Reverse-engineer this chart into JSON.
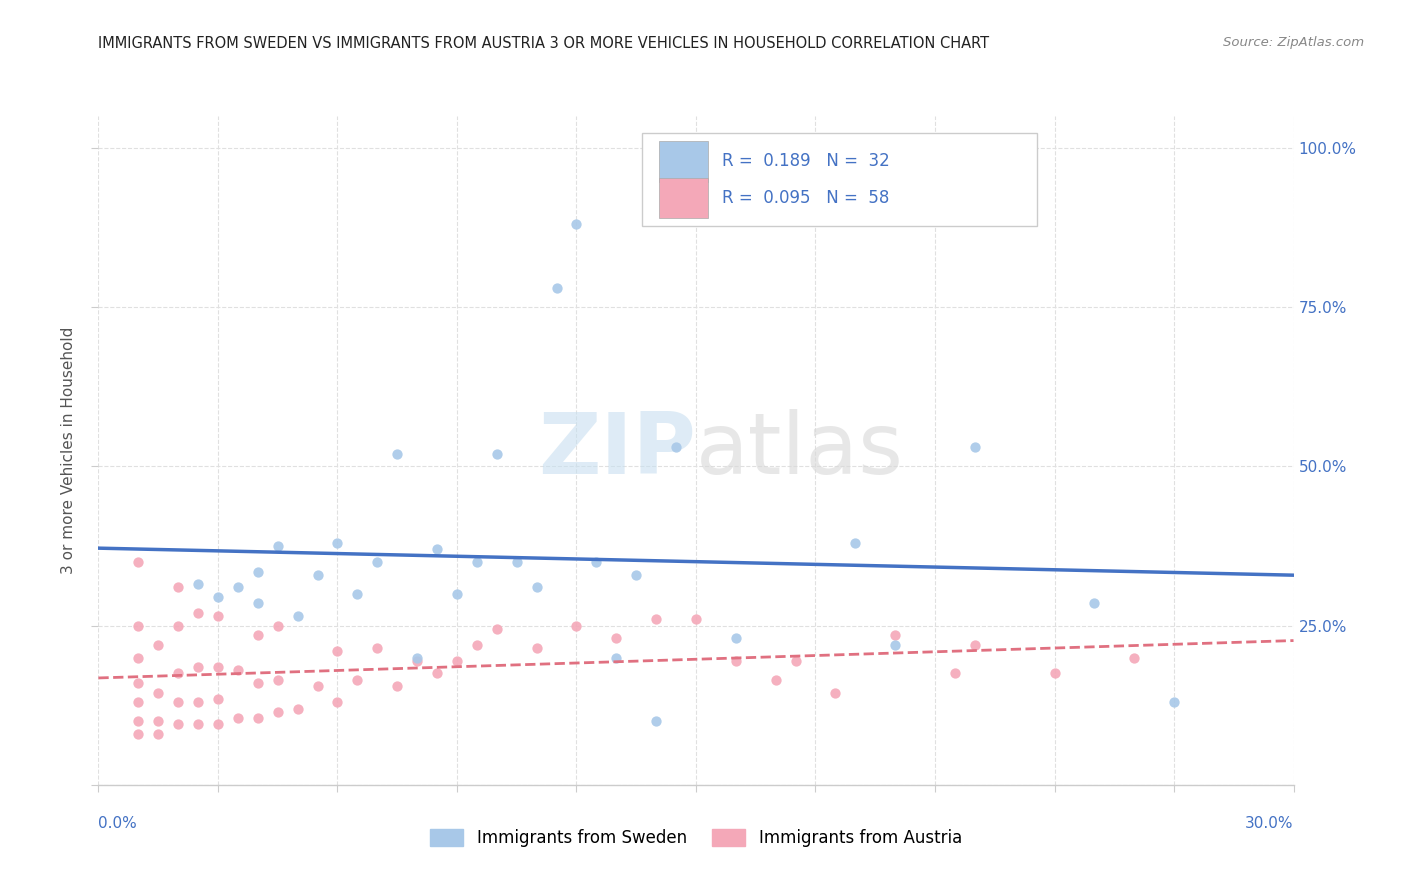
{
  "title": "IMMIGRANTS FROM SWEDEN VS IMMIGRANTS FROM AUSTRIA 3 OR MORE VEHICLES IN HOUSEHOLD CORRELATION CHART",
  "source": "Source: ZipAtlas.com",
  "ylabel_label": "3 or more Vehicles in Household",
  "bg_color": "#ffffff",
  "grid_color": "#e0e0e0",
  "sweden_scatter_color": "#a8c8e8",
  "austria_scatter_color": "#f4a8b8",
  "sweden_line_color": "#4472c4",
  "austria_line_color": "#e07080",
  "label_color": "#4472c4",
  "xmin": 0.0,
  "xmax": 0.3,
  "ymin": 0.0,
  "ymax": 1.05,
  "sweden_points_x": [
    0.025,
    0.03,
    0.035,
    0.04,
    0.04,
    0.045,
    0.05,
    0.055,
    0.06,
    0.065,
    0.07,
    0.075,
    0.08,
    0.085,
    0.09,
    0.095,
    0.1,
    0.105,
    0.11,
    0.115,
    0.12,
    0.125,
    0.13,
    0.135,
    0.14,
    0.145,
    0.16,
    0.19,
    0.2,
    0.22,
    0.25,
    0.27
  ],
  "sweden_points_y": [
    0.315,
    0.295,
    0.31,
    0.335,
    0.285,
    0.375,
    0.265,
    0.33,
    0.38,
    0.3,
    0.35,
    0.52,
    0.2,
    0.37,
    0.3,
    0.35,
    0.52,
    0.35,
    0.31,
    0.78,
    0.88,
    0.35,
    0.2,
    0.33,
    0.1,
    0.53,
    0.23,
    0.38,
    0.22,
    0.53,
    0.285,
    0.13
  ],
  "austria_points_x": [
    0.01,
    0.01,
    0.01,
    0.01,
    0.01,
    0.01,
    0.01,
    0.015,
    0.015,
    0.015,
    0.015,
    0.02,
    0.02,
    0.02,
    0.02,
    0.02,
    0.025,
    0.025,
    0.025,
    0.025,
    0.03,
    0.03,
    0.03,
    0.03,
    0.035,
    0.035,
    0.04,
    0.04,
    0.04,
    0.045,
    0.045,
    0.045,
    0.05,
    0.055,
    0.06,
    0.06,
    0.065,
    0.07,
    0.075,
    0.08,
    0.085,
    0.09,
    0.095,
    0.1,
    0.11,
    0.12,
    0.13,
    0.14,
    0.15,
    0.16,
    0.17,
    0.175,
    0.185,
    0.2,
    0.215,
    0.22,
    0.24,
    0.26
  ],
  "austria_points_y": [
    0.08,
    0.1,
    0.13,
    0.16,
    0.2,
    0.25,
    0.35,
    0.08,
    0.1,
    0.145,
    0.22,
    0.095,
    0.13,
    0.175,
    0.25,
    0.31,
    0.095,
    0.13,
    0.185,
    0.27,
    0.095,
    0.135,
    0.185,
    0.265,
    0.105,
    0.18,
    0.105,
    0.16,
    0.235,
    0.115,
    0.165,
    0.25,
    0.12,
    0.155,
    0.13,
    0.21,
    0.165,
    0.215,
    0.155,
    0.195,
    0.175,
    0.195,
    0.22,
    0.245,
    0.215,
    0.25,
    0.23,
    0.26,
    0.26,
    0.195,
    0.165,
    0.195,
    0.145,
    0.235,
    0.175,
    0.22,
    0.175,
    0.2
  ],
  "legend_sweden_R": "0.189",
  "legend_sweden_N": "32",
  "legend_austria_R": "0.095",
  "legend_austria_N": "58"
}
